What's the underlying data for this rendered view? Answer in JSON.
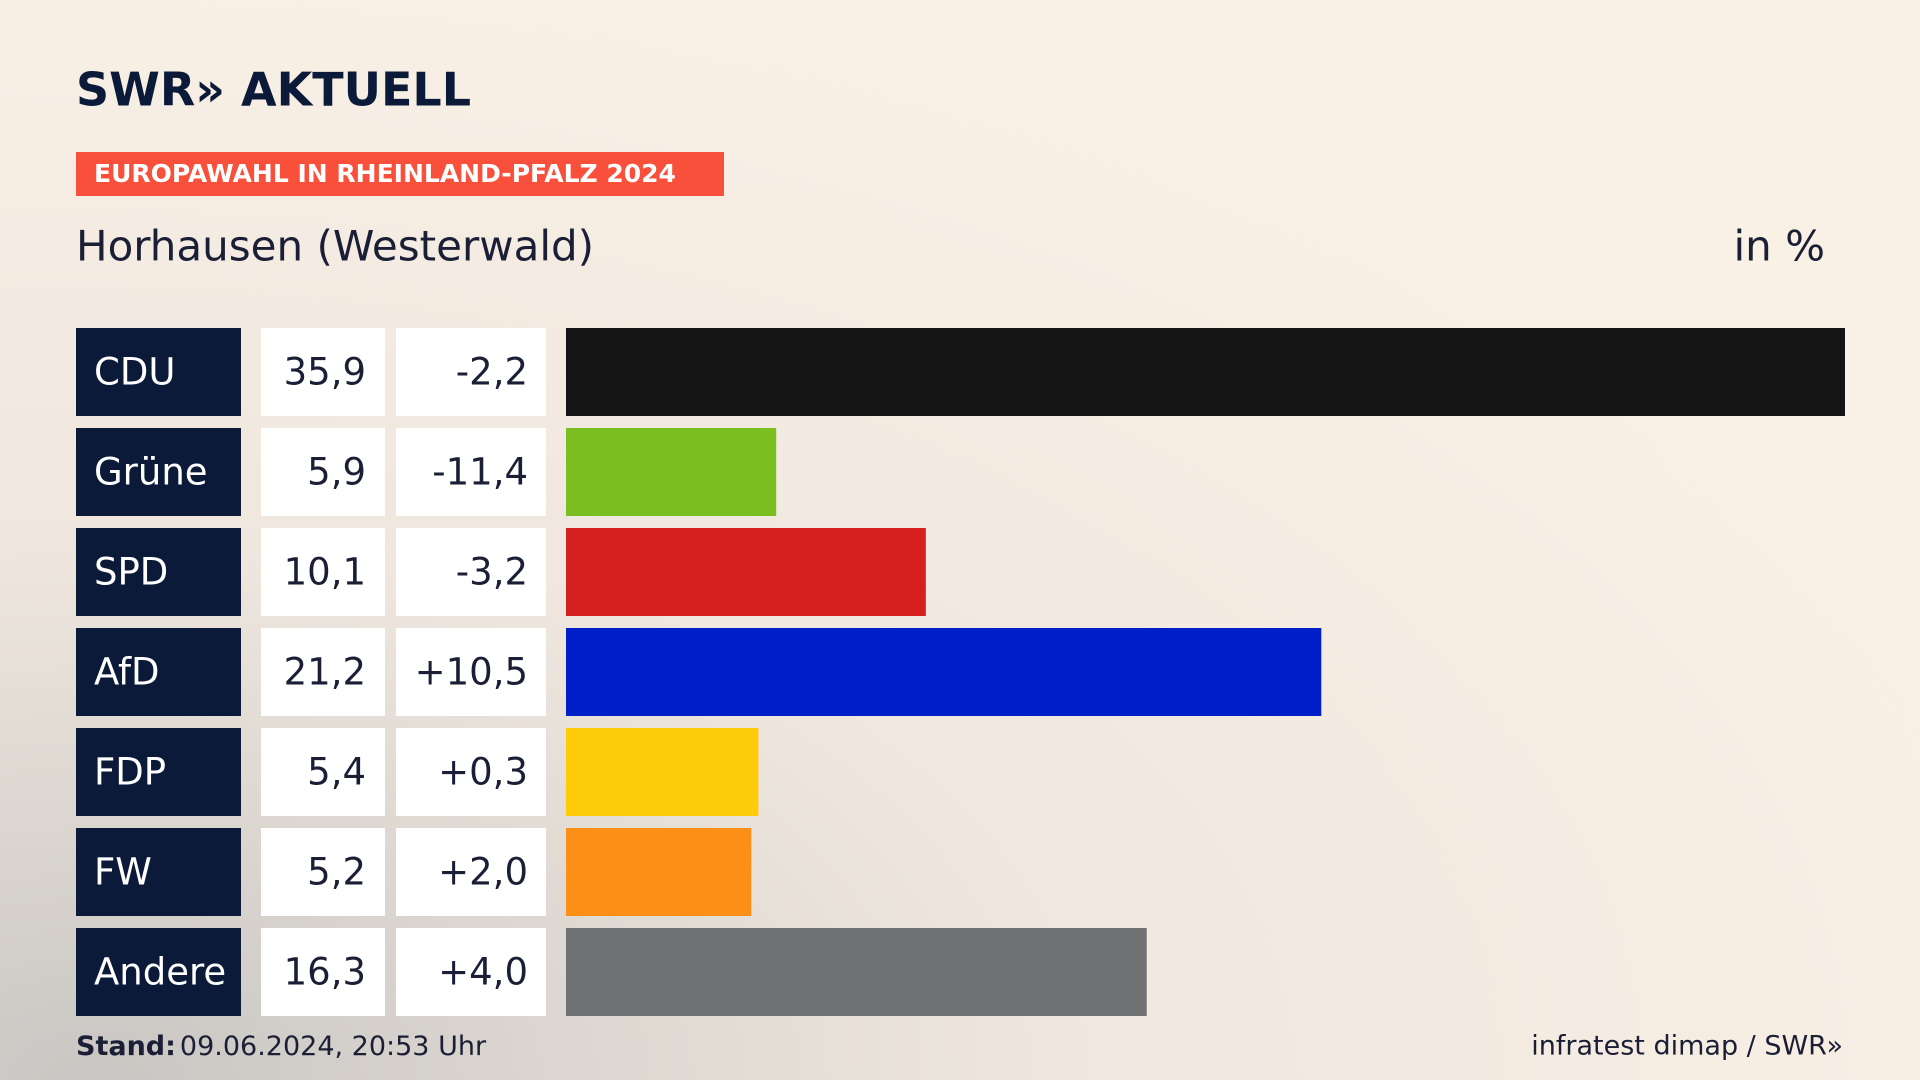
{
  "logo": "SWR» AKTUELL",
  "chart_data": {
    "type": "bar",
    "banner": "EUROPAWAHL IN RHEINLAND-PFALZ 2024",
    "title": "Horhausen (Westerwald)",
    "unit_label": "in %",
    "categories": [
      "CDU",
      "Grüne",
      "SPD",
      "AfD",
      "FDP",
      "FW",
      "Andere"
    ],
    "values": [
      35.9,
      5.9,
      10.1,
      21.2,
      5.4,
      5.2,
      16.3
    ],
    "value_labels": [
      "35,9",
      "5,9",
      "10,1",
      "21,2",
      "5,4",
      "5,2",
      "16,3"
    ],
    "changes": [
      -2.2,
      -11.4,
      -3.2,
      10.5,
      0.3,
      2.0,
      4.0
    ],
    "change_labels": [
      "-2,2",
      "-11,4",
      "-3,2",
      "+10,5",
      "+0,3",
      "+2,0",
      "+4,0"
    ],
    "colors": [
      "#141414",
      "#7abf1f",
      "#d61f1f",
      "#001fc8",
      "#fecb0a",
      "#fc8f18",
      "#707172"
    ]
  },
  "footer": {
    "stand_label": "Stand:",
    "stand_value": "09.06.2024, 20:53 Uhr",
    "source": "infratest dimap / SWR»"
  }
}
